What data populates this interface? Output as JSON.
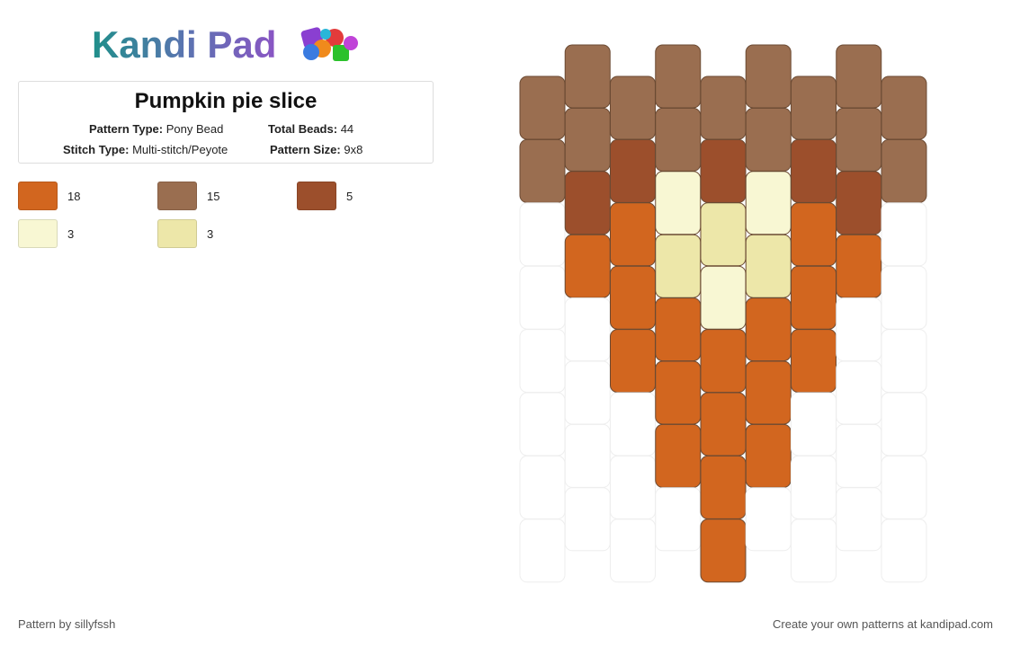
{
  "header": {
    "logo": "Kandi Pad"
  },
  "pattern": {
    "title": "Pumpkin pie slice",
    "type_label": "Pattern Type:",
    "type": "Pony Bead",
    "beads_label": "Total Beads:",
    "beads": 44,
    "stitch_label": "Stitch Type:",
    "stitch": "Multi-stitch/Peyote",
    "size_label": "Pattern Size:",
    "size": "9x8"
  },
  "legend": [
    {
      "color": "#d2661f",
      "count": 18
    },
    {
      "color": "#9a6e50",
      "count": 15
    },
    {
      "color": "#9c4f2c",
      "count": 5
    },
    {
      "color": "#f8f7d3",
      "count": 3
    },
    {
      "color": "#ede7a9",
      "count": 3
    }
  ],
  "grid": {
    "columns": [
      [
        1,
        1,
        null,
        null,
        null,
        null,
        null,
        null
      ],
      [
        1,
        1,
        2,
        0,
        null,
        null,
        null,
        null
      ],
      [
        1,
        2,
        0,
        0,
        0,
        null,
        null,
        null
      ],
      [
        1,
        1,
        3,
        4,
        0,
        0,
        0,
        null
      ],
      [
        1,
        2,
        4,
        3,
        0,
        0,
        0,
        0
      ],
      [
        1,
        1,
        3,
        4,
        0,
        0,
        0,
        null
      ],
      [
        1,
        2,
        0,
        0,
        0,
        null,
        null,
        null
      ],
      [
        1,
        1,
        2,
        0,
        null,
        null,
        null,
        null
      ],
      [
        1,
        1,
        null,
        null,
        null,
        null,
        null,
        null
      ]
    ]
  },
  "footer": {
    "left": "Pattern by sillyfssh",
    "right": "Create your own patterns at kandipad.com"
  }
}
